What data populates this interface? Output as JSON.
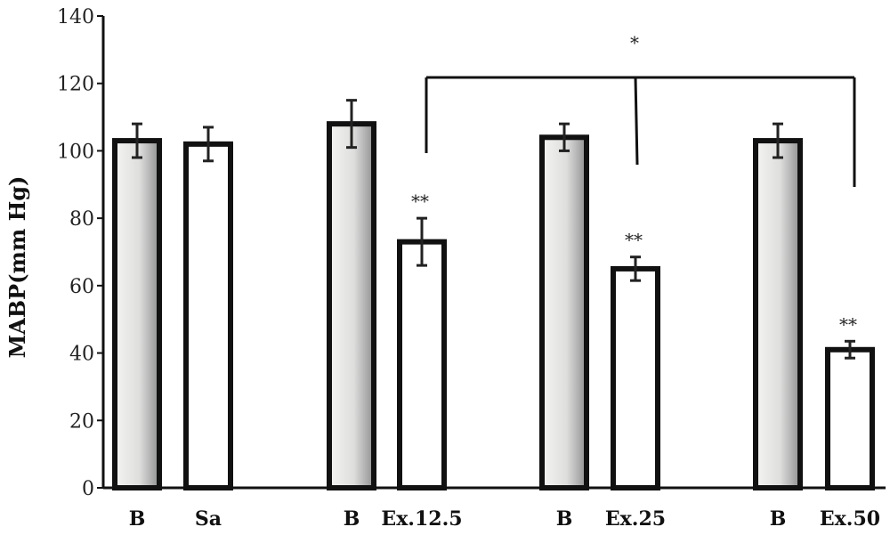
{
  "chart_data": {
    "type": "bar",
    "ylabel": "MABP(mm Hg)",
    "ylim": [
      0,
      140
    ],
    "yticks": [
      0,
      20,
      40,
      60,
      80,
      100,
      120,
      140
    ],
    "categories": [
      "B",
      "Sa",
      "B",
      "Ex.12.5",
      "B",
      "Ex.25",
      "B",
      "Ex.50"
    ],
    "values": [
      103,
      102,
      108,
      73,
      104,
      65,
      103,
      41
    ],
    "errors": [
      5,
      5,
      7,
      7,
      4,
      3.5,
      5,
      2.5
    ],
    "fill": [
      "gradient",
      "white",
      "gradient",
      "white",
      "gradient",
      "white",
      "gradient",
      "white"
    ],
    "bar_labels": [
      "",
      "",
      "",
      "**",
      "",
      "**",
      "",
      "**"
    ],
    "comparison": {
      "label": "*",
      "from_index": 3,
      "to_indices": [
        3,
        5,
        7
      ]
    },
    "colors": {
      "bar_stroke": "#111111",
      "gradient_dark": "#8f9090",
      "gradient_light": "#f4f4f2"
    }
  }
}
